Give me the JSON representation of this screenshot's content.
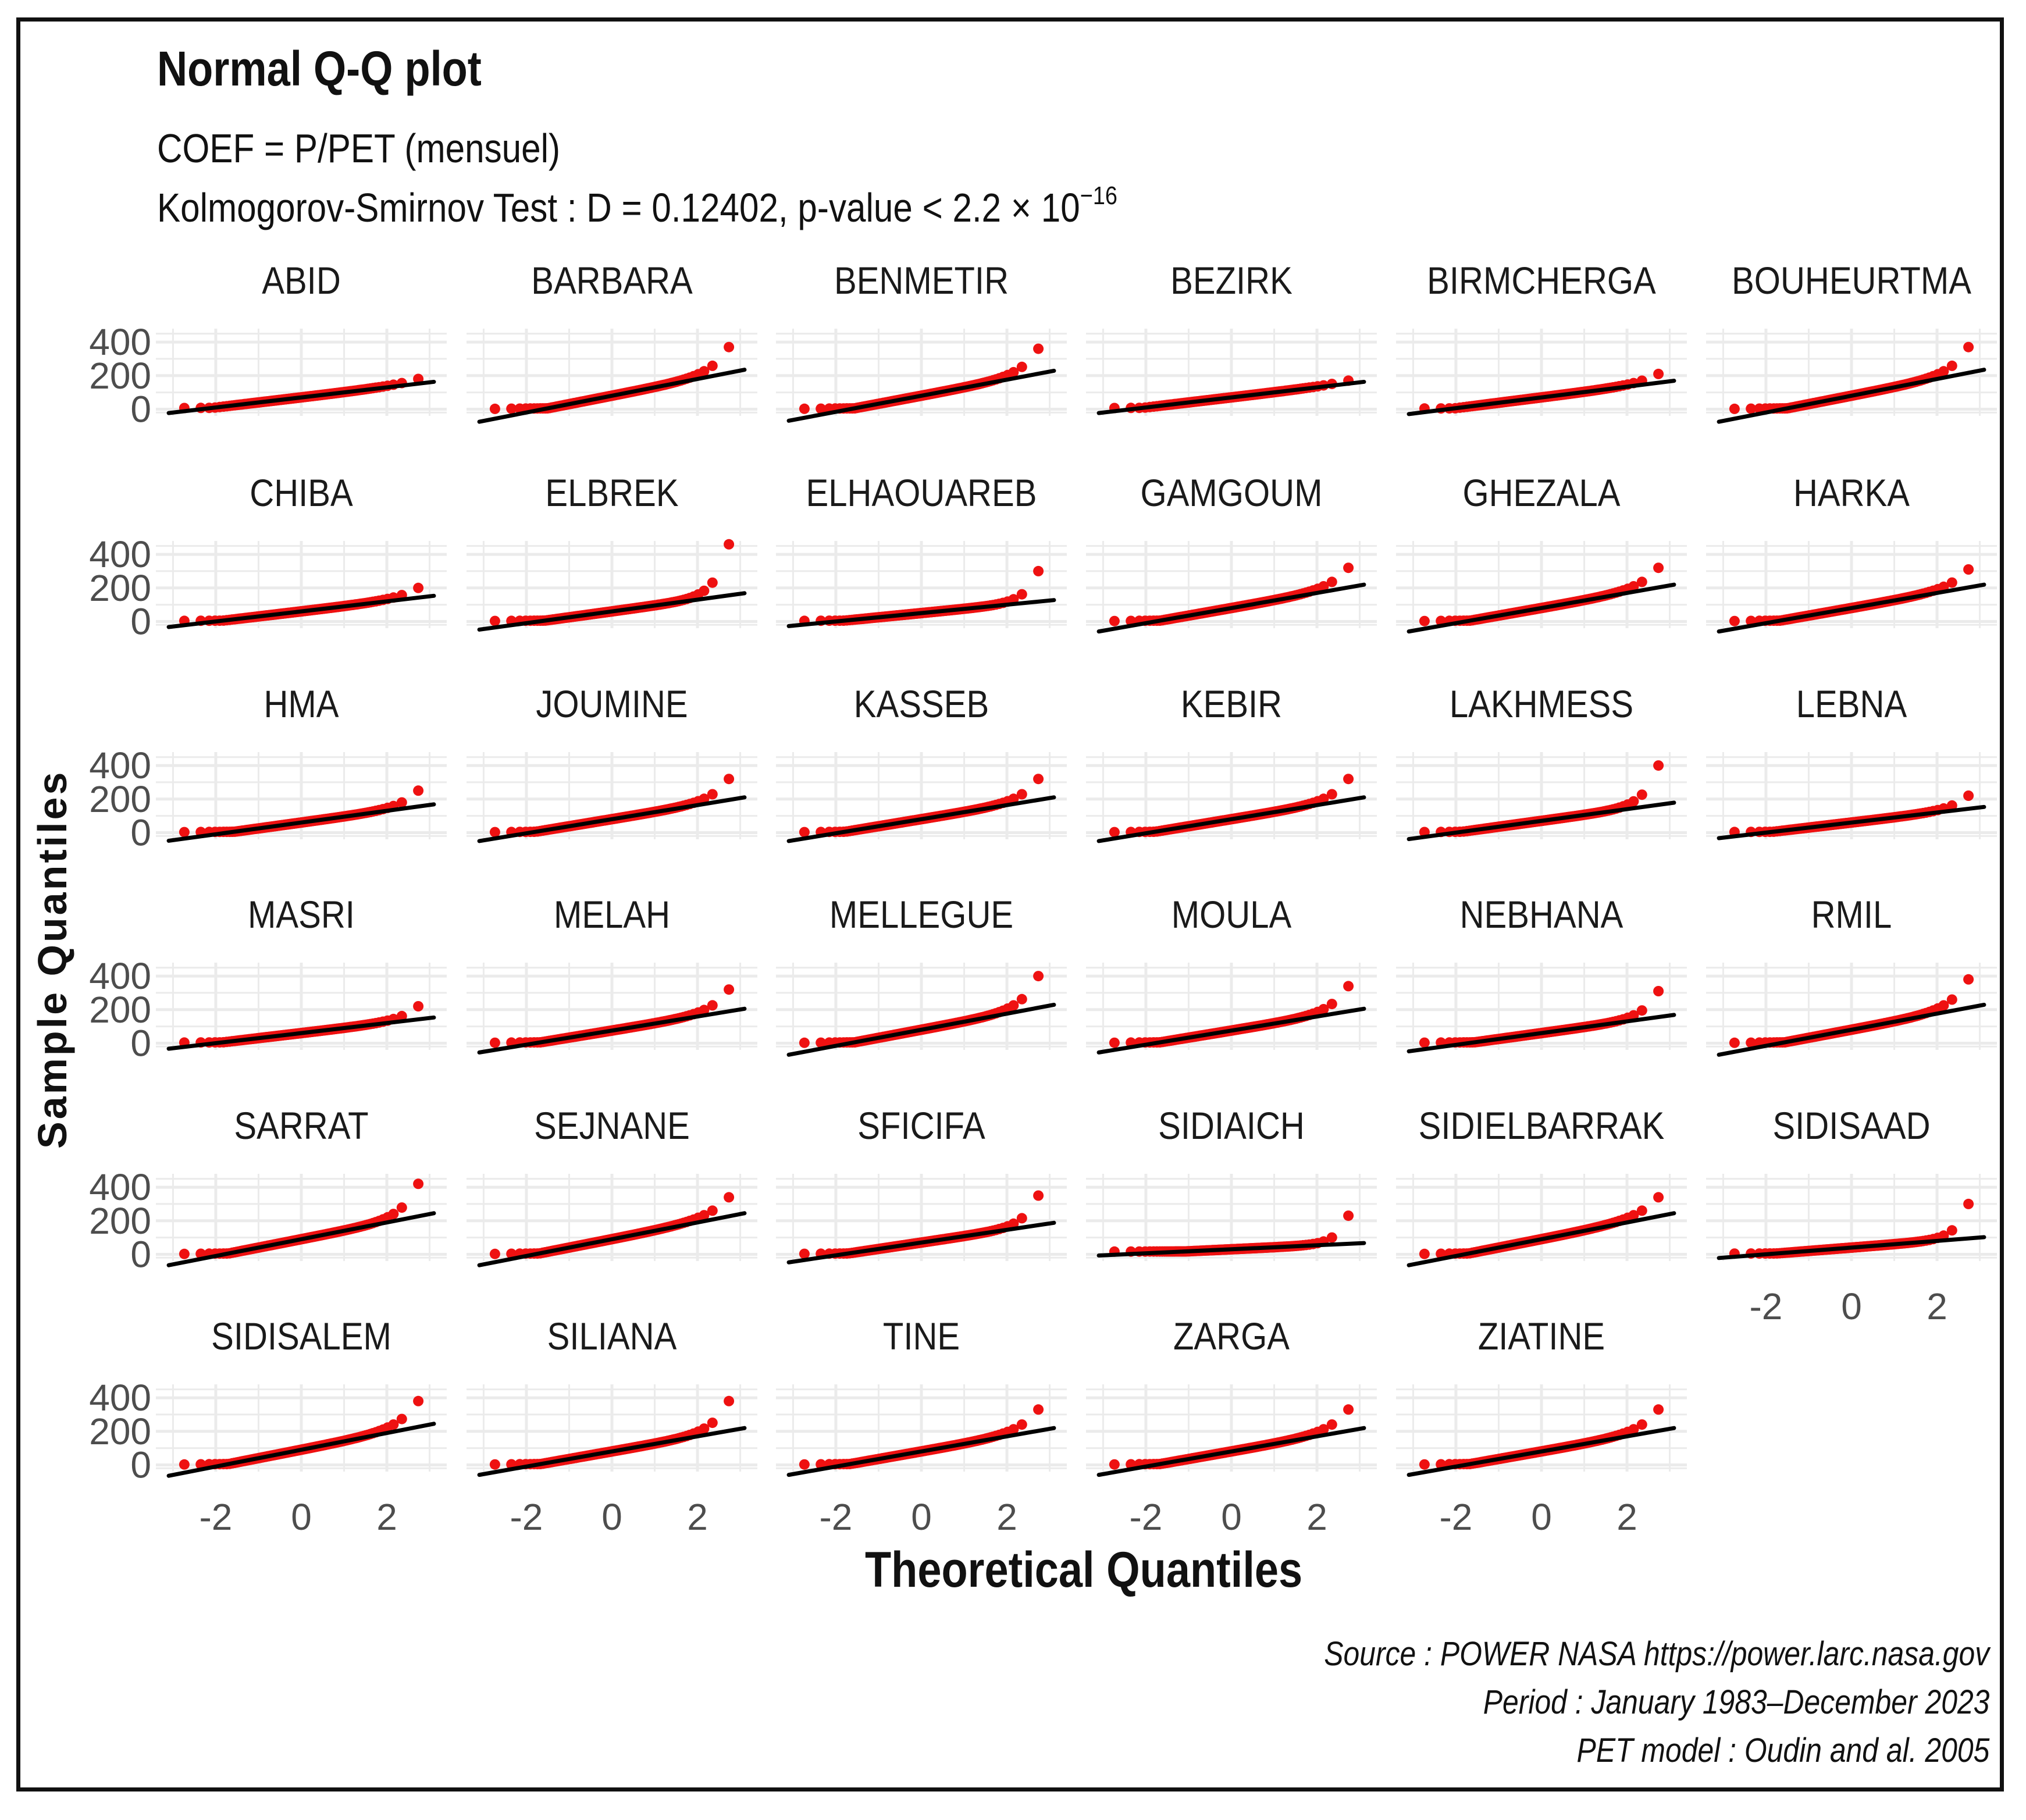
{
  "title": "Normal Q-Q plot",
  "subtitle_line1": "COEF = P/PET (mensuel)",
  "subtitle_line2": "Kolmogorov-Smirnov Test : D = 0.12402, p-value < 2.2 × 10",
  "subtitle_line2_exponent": "−16",
  "caption": [
    "Source : POWER NASA https://power.larc.nasa.gov",
    "Period : January 1983–December 2023",
    "PET model : Oudin and al. 2005"
  ],
  "colors": {
    "points": "#ee1111",
    "line": "#000000",
    "grid": "#ebebeb",
    "frame": "#111111"
  },
  "chart_data": {
    "type": "scatter",
    "subtype": "qq-plot-faceted",
    "xlabel": "Theoretical Quantiles",
    "ylabel": "Sample Quantiles",
    "x_ticks": [
      -2,
      0,
      2
    ],
    "y_ticks": [
      0,
      200,
      400
    ],
    "xlim": [
      -3.4,
      3.4
    ],
    "ylim": [
      -40,
      480
    ],
    "grid": true,
    "panels": [
      {
        "name": "ABID",
        "line_intercept": 70,
        "line_slope": 30,
        "max_value": 180,
        "curvature": 1.6
      },
      {
        "name": "BARBARA",
        "line_intercept": 80,
        "line_slope": 50,
        "max_value": 370,
        "curvature": 2.4
      },
      {
        "name": "BENMETIR",
        "line_intercept": 80,
        "line_slope": 48,
        "max_value": 360,
        "curvature": 2.4
      },
      {
        "name": "BEZIRK",
        "line_intercept": 70,
        "line_slope": 30,
        "max_value": 170,
        "curvature": 1.6
      },
      {
        "name": "BIRMCHERGA",
        "line_intercept": 70,
        "line_slope": 32,
        "max_value": 210,
        "curvature": 2.0
      },
      {
        "name": "BOUHEURTMA",
        "line_intercept": 80,
        "line_slope": 50,
        "max_value": 370,
        "curvature": 2.4
      },
      {
        "name": "CHIBA",
        "line_intercept": 60,
        "line_slope": 30,
        "max_value": 200,
        "curvature": 2.0
      },
      {
        "name": "ELBREK",
        "line_intercept": 60,
        "line_slope": 35,
        "max_value": 460,
        "curvature": 3.2
      },
      {
        "name": "ELHAOUAREB",
        "line_intercept": 50,
        "line_slope": 25,
        "max_value": 300,
        "curvature": 3.2
      },
      {
        "name": "GAMGOUM",
        "line_intercept": 80,
        "line_slope": 45,
        "max_value": 320,
        "curvature": 2.2
      },
      {
        "name": "GHEZALA",
        "line_intercept": 80,
        "line_slope": 45,
        "max_value": 320,
        "curvature": 2.2
      },
      {
        "name": "HARKA",
        "line_intercept": 80,
        "line_slope": 45,
        "max_value": 310,
        "curvature": 2.2
      },
      {
        "name": "HMA",
        "line_intercept": 60,
        "line_slope": 35,
        "max_value": 250,
        "curvature": 2.4
      },
      {
        "name": "JOUMINE",
        "line_intercept": 80,
        "line_slope": 42,
        "max_value": 320,
        "curvature": 2.4
      },
      {
        "name": "KASSEB",
        "line_intercept": 80,
        "line_slope": 42,
        "max_value": 320,
        "curvature": 2.4
      },
      {
        "name": "KEBIR",
        "line_intercept": 80,
        "line_slope": 42,
        "max_value": 320,
        "curvature": 2.4
      },
      {
        "name": "LAKHMESS",
        "line_intercept": 70,
        "line_slope": 35,
        "max_value": 400,
        "curvature": 3.0
      },
      {
        "name": "LEBNA",
        "line_intercept": 60,
        "line_slope": 30,
        "max_value": 220,
        "curvature": 2.4
      },
      {
        "name": "MASRI",
        "line_intercept": 60,
        "line_slope": 30,
        "max_value": 220,
        "curvature": 2.4
      },
      {
        "name": "MELAH",
        "line_intercept": 75,
        "line_slope": 42,
        "max_value": 320,
        "curvature": 2.4
      },
      {
        "name": "MELLEGUE",
        "line_intercept": 80,
        "line_slope": 48,
        "max_value": 400,
        "curvature": 2.6
      },
      {
        "name": "MOULA",
        "line_intercept": 75,
        "line_slope": 42,
        "max_value": 340,
        "curvature": 2.4
      },
      {
        "name": "NEBHANA",
        "line_intercept": 60,
        "line_slope": 35,
        "max_value": 310,
        "curvature": 2.8
      },
      {
        "name": "RMIL",
        "line_intercept": 80,
        "line_slope": 48,
        "max_value": 380,
        "curvature": 2.4
      },
      {
        "name": "SARRAT",
        "line_intercept": 90,
        "line_slope": 50,
        "max_value": 420,
        "curvature": 2.6
      },
      {
        "name": "SEJNANE",
        "line_intercept": 90,
        "line_slope": 50,
        "max_value": 340,
        "curvature": 2.0
      },
      {
        "name": "SFICIFA",
        "line_intercept": 70,
        "line_slope": 38,
        "max_value": 350,
        "curvature": 3.0
      },
      {
        "name": "SIDIAICH",
        "line_intercept": 30,
        "line_slope": 12,
        "max_value": 230,
        "curvature": 3.6
      },
      {
        "name": "SIDIELBARRAK",
        "line_intercept": 90,
        "line_slope": 50,
        "max_value": 340,
        "curvature": 2.0
      },
      {
        "name": "SIDISAAD",
        "line_intercept": 40,
        "line_slope": 20,
        "max_value": 300,
        "curvature": 3.4
      },
      {
        "name": "SIDISALEM",
        "line_intercept": 90,
        "line_slope": 50,
        "max_value": 380,
        "curvature": 2.2
      },
      {
        "name": "SILIANA",
        "line_intercept": 80,
        "line_slope": 45,
        "max_value": 380,
        "curvature": 2.6
      },
      {
        "name": "TINE",
        "line_intercept": 80,
        "line_slope": 45,
        "max_value": 330,
        "curvature": 2.2
      },
      {
        "name": "ZARGA",
        "line_intercept": 80,
        "line_slope": 45,
        "max_value": 330,
        "curvature": 2.2
      },
      {
        "name": "ZIATINE",
        "line_intercept": 80,
        "line_slope": 45,
        "max_value": 330,
        "curvature": 2.2
      }
    ]
  }
}
